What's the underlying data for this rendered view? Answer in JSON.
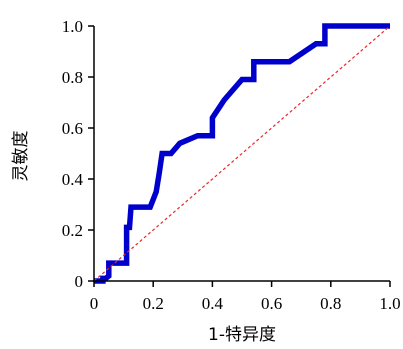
{
  "chart_data": {
    "type": "line",
    "xlabel": "1-特异度",
    "ylabel": "灵敏度",
    "xlim": [
      0,
      1
    ],
    "ylim": [
      0,
      1
    ],
    "x_ticks": [
      "0",
      "0.2",
      "0.4",
      "0.6",
      "0.8",
      "1.0"
    ],
    "y_ticks": [
      "0",
      "0.2",
      "0.4",
      "0.6",
      "0.8",
      "1.0"
    ],
    "grid": false,
    "series": [
      {
        "role": "roc-curve",
        "color": "#0000cc",
        "style": "solid",
        "x": [
          0.0,
          0.03,
          0.03,
          0.04,
          0.05,
          0.05,
          0.09,
          0.1,
          0.11,
          0.11,
          0.12,
          0.125,
          0.19,
          0.21,
          0.22,
          0.23,
          0.26,
          0.29,
          0.35,
          0.4,
          0.4,
          0.44,
          0.5,
          0.53,
          0.54,
          0.54,
          0.6,
          0.66,
          0.75,
          0.78,
          0.78,
          1.0
        ],
        "y": [
          0.0,
          0.0,
          0.01,
          0.01,
          0.02,
          0.07,
          0.07,
          0.07,
          0.07,
          0.21,
          0.21,
          0.29,
          0.29,
          0.35,
          0.42,
          0.5,
          0.5,
          0.54,
          0.57,
          0.57,
          0.64,
          0.71,
          0.79,
          0.79,
          0.79,
          0.86,
          0.86,
          0.86,
          0.93,
          0.93,
          1.0,
          1.0
        ]
      },
      {
        "role": "reference-diagonal",
        "color": "#e8282d",
        "style": "dashed",
        "x": [
          0,
          1
        ],
        "y": [
          0,
          1
        ]
      }
    ]
  }
}
